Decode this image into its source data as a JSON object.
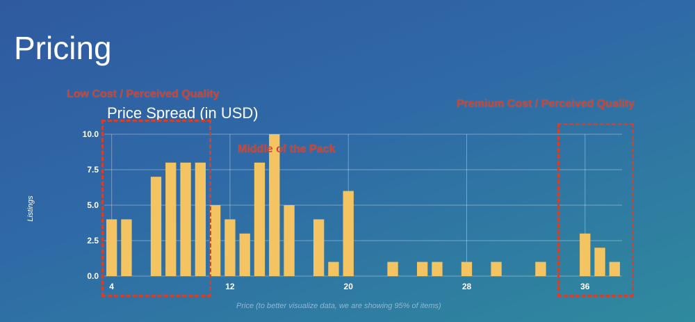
{
  "slide": {
    "title": "Pricing"
  },
  "annotations": {
    "low": "Low Cost / Perceived Quality",
    "middle": "Middle of the Pack",
    "premium": "Premium Cost / Perceived Quality",
    "color": "#d2412b"
  },
  "chart_data": {
    "type": "bar",
    "title": "Price Spread (in USD)",
    "xlabel": "Price (to better visualize data, we are showing 95% of items)",
    "ylabel": "Listings",
    "x": [
      4,
      5,
      7,
      8,
      9,
      10,
      11,
      12,
      13,
      14,
      15,
      16,
      18,
      19,
      20,
      23,
      25,
      26,
      28,
      30,
      33,
      36,
      37,
      38
    ],
    "values": [
      4,
      4,
      7,
      8,
      8,
      8,
      5,
      4,
      3,
      8,
      10,
      5,
      4,
      1,
      6,
      1,
      1,
      1,
      1,
      1,
      1,
      3,
      2,
      1
    ],
    "xticks": [
      4,
      12,
      20,
      28,
      36
    ],
    "yticks": [
      "0.0",
      "2.5",
      "5.0",
      "7.5",
      "10.0"
    ],
    "xlim": [
      3.5,
      38.5
    ],
    "ylim": [
      0,
      10
    ],
    "bar_color": "#f5c462",
    "grid": true
  }
}
